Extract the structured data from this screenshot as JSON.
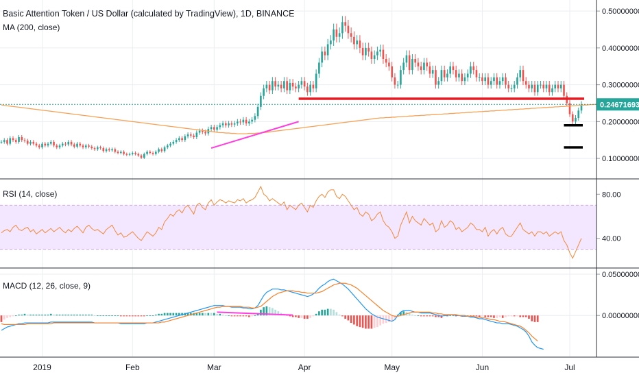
{
  "header": {
    "title": "Basic Attention Token / US Dollar (calculated by TradingView), 1D, BINANCE",
    "ma_label": "MA (200, close)",
    "rsi_label": "RSI (14, close)",
    "macd_label": "MACD (12, 26, close, 9)"
  },
  "colors": {
    "up": "#26a69a",
    "down": "#ef5350",
    "ma": "#f7a155",
    "rsi": "#f08a3a",
    "rsi_band": "#f3e6ff",
    "macd_line": "#2196f3",
    "signal_line": "#f7822b",
    "price_tag": "#26a69a",
    "resistance": "#e51c23",
    "trendline": "#ff3ee0",
    "support": "#000000"
  },
  "chart_data": [
    {
      "type": "candlestick",
      "pane": "price",
      "x_tick_labels": [
        "2019",
        "Feb",
        "Mar",
        "Apr",
        "May",
        "Jun",
        "Jul"
      ],
      "y_tick_labels": [
        "0.50000000",
        "0.40000000",
        "0.30000000",
        "0.20000000",
        "0.10000000"
      ],
      "ylim": [
        0.05,
        0.53
      ],
      "last_price_label": "0.24671693",
      "last_price": 0.2467,
      "close": [
        0.145,
        0.15,
        0.14,
        0.155,
        0.15,
        0.145,
        0.158,
        0.15,
        0.148,
        0.14,
        0.145,
        0.14,
        0.135,
        0.13,
        0.14,
        0.135,
        0.14,
        0.145,
        0.135,
        0.13,
        0.135,
        0.14,
        0.138,
        0.145,
        0.138,
        0.132,
        0.14,
        0.135,
        0.13,
        0.135,
        0.132,
        0.128,
        0.125,
        0.13,
        0.128,
        0.12,
        0.125,
        0.122,
        0.125,
        0.118,
        0.115,
        0.118,
        0.112,
        0.11,
        0.112,
        0.115,
        0.112,
        0.108,
        0.102,
        0.112,
        0.118,
        0.115,
        0.112,
        0.118,
        0.125,
        0.12,
        0.13,
        0.135,
        0.14,
        0.145,
        0.15,
        0.155,
        0.15,
        0.16,
        0.165,
        0.162,
        0.158,
        0.17,
        0.175,
        0.172,
        0.168,
        0.18,
        0.185,
        0.178,
        0.185,
        0.19,
        0.195,
        0.19,
        0.195,
        0.192,
        0.195,
        0.2,
        0.198,
        0.205,
        0.195,
        0.2,
        0.205,
        0.215,
        0.24,
        0.27,
        0.29,
        0.3,
        0.285,
        0.31,
        0.295,
        0.3,
        0.29,
        0.31,
        0.285,
        0.305,
        0.295,
        0.29,
        0.3,
        0.31,
        0.295,
        0.28,
        0.3,
        0.29,
        0.33,
        0.36,
        0.39,
        0.38,
        0.41,
        0.42,
        0.45,
        0.43,
        0.44,
        0.47,
        0.46,
        0.44,
        0.43,
        0.41,
        0.42,
        0.4,
        0.38,
        0.4,
        0.39,
        0.37,
        0.38,
        0.39,
        0.395,
        0.37,
        0.36,
        0.35,
        0.32,
        0.3,
        0.3,
        0.34,
        0.36,
        0.38,
        0.34,
        0.37,
        0.36,
        0.35,
        0.34,
        0.36,
        0.35,
        0.33,
        0.34,
        0.3,
        0.31,
        0.34,
        0.32,
        0.33,
        0.35,
        0.34,
        0.32,
        0.33,
        0.31,
        0.32,
        0.33,
        0.35,
        0.34,
        0.32,
        0.32,
        0.31,
        0.32,
        0.3,
        0.31,
        0.32,
        0.3,
        0.31,
        0.32,
        0.3,
        0.29,
        0.29,
        0.3,
        0.32,
        0.34,
        0.31,
        0.3,
        0.29,
        0.3,
        0.28,
        0.3,
        0.3,
        0.29,
        0.3,
        0.28,
        0.29,
        0.3,
        0.29,
        0.3,
        0.27,
        0.25,
        0.22,
        0.2,
        0.21,
        0.23,
        0.2467
      ],
      "ma200": [
        0.245,
        0.244,
        0.243,
        0.242,
        0.241,
        0.24,
        0.239,
        0.238,
        0.237,
        0.236,
        0.235,
        0.234,
        0.233,
        0.232,
        0.231,
        0.23,
        0.229,
        0.228,
        0.227,
        0.226,
        0.225,
        0.224,
        0.223,
        0.222,
        0.221,
        0.22,
        0.219,
        0.218,
        0.217,
        0.216,
        0.215,
        0.214,
        0.213,
        0.212,
        0.211,
        0.21,
        0.209,
        0.208,
        0.207,
        0.206,
        0.205,
        0.204,
        0.203,
        0.202,
        0.201,
        0.2,
        0.199,
        0.198,
        0.197,
        0.196,
        0.195,
        0.194,
        0.193,
        0.192,
        0.191,
        0.19,
        0.189,
        0.188,
        0.187,
        0.186,
        0.185,
        0.184,
        0.183,
        0.182,
        0.181,
        0.18,
        0.179,
        0.178,
        0.177,
        0.176,
        0.175,
        0.174,
        0.173,
        0.172,
        0.171,
        0.17,
        0.17,
        0.169,
        0.169,
        0.168,
        0.168,
        0.167,
        0.167,
        0.167,
        0.167,
        0.168,
        0.168,
        0.168,
        0.169,
        0.169,
        0.17,
        0.171,
        0.172,
        0.173,
        0.174,
        0.175,
        0.176,
        0.177,
        0.178,
        0.179,
        0.18,
        0.181,
        0.182,
        0.183,
        0.184,
        0.185,
        0.186,
        0.187,
        0.188,
        0.189,
        0.19,
        0.191,
        0.192,
        0.193,
        0.194,
        0.195,
        0.196,
        0.197,
        0.198,
        0.199,
        0.2,
        0.201,
        0.202,
        0.203,
        0.204,
        0.205,
        0.206,
        0.207,
        0.208,
        0.209,
        0.21,
        0.21,
        0.211,
        0.211,
        0.212,
        0.212,
        0.213,
        0.213,
        0.214,
        0.214,
        0.215,
        0.215,
        0.216,
        0.216,
        0.217,
        0.217,
        0.218,
        0.218,
        0.219,
        0.219,
        0.22,
        0.22,
        0.221,
        0.221,
        0.222,
        0.222,
        0.223,
        0.223,
        0.224,
        0.224,
        0.225,
        0.225,
        0.226,
        0.226,
        0.227,
        0.227,
        0.228,
        0.228,
        0.229,
        0.229,
        0.23,
        0.23,
        0.231,
        0.231,
        0.232,
        0.232,
        0.233,
        0.233,
        0.234,
        0.234,
        0.235,
        0.235,
        0.236,
        0.236,
        0.237,
        0.237,
        0.238,
        0.238,
        0.239,
        0.239,
        0.24,
        0.24,
        0.241,
        0.241,
        0.242,
        0.242,
        0.243,
        0.243,
        0.244,
        0.244,
        0.245,
        0.245,
        0.246,
        0.246,
        0.247
      ],
      "drawings": {
        "resistance": [
          0.262,
          0.262
        ],
        "trendline": [
          0.128,
          0.2
        ],
        "support_marks": [
          0.19,
          0.13
        ]
      }
    },
    {
      "type": "line",
      "pane": "rsi",
      "y_tick_labels": [
        "80.00",
        "40.00"
      ],
      "ylim": [
        15,
        92
      ],
      "bands": [
        30,
        70
      ],
      "values": [
        45,
        47,
        48,
        46,
        50,
        52,
        48,
        47,
        49,
        50,
        46,
        48,
        44,
        46,
        48,
        45,
        47,
        49,
        46,
        48,
        50,
        47,
        45,
        48,
        46,
        49,
        51,
        48,
        45,
        50,
        52,
        49,
        47,
        48,
        46,
        44,
        48,
        50,
        52,
        47,
        43,
        45,
        41,
        42,
        44,
        46,
        43,
        40,
        38,
        42,
        46,
        44,
        42,
        45,
        50,
        48,
        55,
        58,
        62,
        60,
        64,
        66,
        63,
        68,
        70,
        66,
        62,
        70,
        72,
        68,
        66,
        72,
        75,
        70,
        73,
        75,
        74,
        72,
        74,
        73,
        72,
        75,
        74,
        76,
        72,
        74,
        75,
        77,
        82,
        87,
        80,
        78,
        74,
        76,
        74,
        72,
        70,
        73,
        66,
        70,
        68,
        66,
        70,
        72,
        68,
        64,
        70,
        68,
        74,
        78,
        80,
        77,
        82,
        84,
        84,
        78,
        76,
        80,
        78,
        74,
        70,
        66,
        68,
        62,
        60,
        64,
        62,
        56,
        58,
        62,
        64,
        56,
        52,
        50,
        46,
        40,
        42,
        52,
        58,
        64,
        54,
        60,
        56,
        54,
        52,
        58,
        55,
        52,
        54,
        46,
        48,
        56,
        50,
        52,
        56,
        54,
        48,
        50,
        46,
        48,
        50,
        54,
        52,
        48,
        48,
        46,
        50,
        42,
        46,
        48,
        44,
        48,
        50,
        44,
        42,
        42,
        46,
        50,
        54,
        48,
        46,
        44,
        46,
        42,
        46,
        46,
        44,
        46,
        42,
        44,
        46,
        44,
        46,
        38,
        34,
        27,
        22,
        28,
        34,
        40
      ]
    },
    {
      "type": "line+bar",
      "pane": "macd",
      "y_tick_labels": [
        "0.05000000",
        "0.00000000"
      ],
      "ylim": [
        -0.048,
        0.055
      ],
      "macd": [
        -0.018,
        -0.016,
        -0.014,
        -0.013,
        -0.012,
        -0.011,
        -0.01,
        -0.01,
        -0.009,
        -0.009,
        -0.009,
        -0.009,
        -0.009,
        -0.009,
        -0.009,
        -0.009,
        -0.009,
        -0.008,
        -0.008,
        -0.008,
        -0.008,
        -0.008,
        -0.008,
        -0.008,
        -0.008,
        -0.008,
        -0.008,
        -0.008,
        -0.008,
        -0.008,
        -0.008,
        -0.008,
        -0.009,
        -0.009,
        -0.009,
        -0.009,
        -0.009,
        -0.009,
        -0.009,
        -0.009,
        -0.009,
        -0.01,
        -0.01,
        -0.01,
        -0.01,
        -0.01,
        -0.01,
        -0.01,
        -0.01,
        -0.01,
        -0.009,
        -0.009,
        -0.009,
        -0.008,
        -0.007,
        -0.006,
        -0.005,
        -0.004,
        -0.003,
        -0.002,
        -0.001,
        0.0,
        0.001,
        0.002,
        0.003,
        0.004,
        0.005,
        0.006,
        0.007,
        0.008,
        0.009,
        0.01,
        0.011,
        0.012,
        0.012,
        0.012,
        0.012,
        0.011,
        0.011,
        0.01,
        0.01,
        0.01,
        0.01,
        0.009,
        0.009,
        0.008,
        0.008,
        0.009,
        0.012,
        0.018,
        0.024,
        0.028,
        0.03,
        0.032,
        0.032,
        0.032,
        0.031,
        0.031,
        0.03,
        0.029,
        0.028,
        0.027,
        0.026,
        0.025,
        0.024,
        0.023,
        0.024,
        0.026,
        0.029,
        0.033,
        0.036,
        0.038,
        0.041,
        0.043,
        0.044,
        0.042,
        0.04,
        0.038,
        0.035,
        0.032,
        0.028,
        0.024,
        0.02,
        0.016,
        0.012,
        0.008,
        0.005,
        0.002,
        0.0,
        -0.002,
        -0.003,
        -0.004,
        -0.005,
        -0.006,
        -0.007,
        -0.005,
        0.0,
        0.004,
        0.006,
        0.006,
        0.006,
        0.005,
        0.004,
        0.004,
        0.003,
        0.003,
        0.003,
        0.003,
        0.002,
        0.001,
        0.0,
        -0.001,
        0.0,
        0.0,
        0.001,
        0.001,
        0.0,
        0.0,
        -0.001,
        -0.001,
        -0.001,
        -0.002,
        -0.002,
        -0.003,
        -0.004,
        -0.004,
        -0.005,
        -0.006,
        -0.007,
        -0.008,
        -0.009,
        -0.009,
        -0.01,
        -0.01,
        -0.01,
        -0.011,
        -0.012,
        -0.013,
        -0.015,
        -0.017,
        -0.02,
        -0.025,
        -0.032,
        -0.036,
        -0.039,
        -0.04,
        -0.041
      ],
      "signal": [
        -0.01,
        -0.011,
        -0.011,
        -0.011,
        -0.011,
        -0.011,
        -0.011,
        -0.011,
        -0.011,
        -0.01,
        -0.01,
        -0.01,
        -0.01,
        -0.01,
        -0.01,
        -0.01,
        -0.01,
        -0.01,
        -0.009,
        -0.009,
        -0.009,
        -0.009,
        -0.009,
        -0.009,
        -0.009,
        -0.009,
        -0.009,
        -0.009,
        -0.009,
        -0.009,
        -0.009,
        -0.009,
        -0.009,
        -0.009,
        -0.009,
        -0.009,
        -0.009,
        -0.009,
        -0.009,
        -0.009,
        -0.009,
        -0.009,
        -0.009,
        -0.009,
        -0.009,
        -0.009,
        -0.009,
        -0.009,
        -0.009,
        -0.009,
        -0.009,
        -0.009,
        -0.009,
        -0.009,
        -0.009,
        -0.008,
        -0.008,
        -0.007,
        -0.006,
        -0.005,
        -0.004,
        -0.003,
        -0.002,
        -0.001,
        0.0,
        0.001,
        0.002,
        0.003,
        0.004,
        0.005,
        0.006,
        0.007,
        0.008,
        0.009,
        0.01,
        0.01,
        0.011,
        0.011,
        0.011,
        0.011,
        0.011,
        0.011,
        0.011,
        0.01,
        0.01,
        0.01,
        0.009,
        0.009,
        0.01,
        0.011,
        0.014,
        0.017,
        0.02,
        0.023,
        0.025,
        0.027,
        0.028,
        0.029,
        0.03,
        0.03,
        0.03,
        0.029,
        0.029,
        0.028,
        0.028,
        0.027,
        0.027,
        0.027,
        0.027,
        0.028,
        0.029,
        0.031,
        0.033,
        0.035,
        0.037,
        0.038,
        0.039,
        0.039,
        0.039,
        0.038,
        0.037,
        0.035,
        0.033,
        0.03,
        0.027,
        0.024,
        0.021,
        0.018,
        0.015,
        0.012,
        0.009,
        0.006,
        0.004,
        0.002,
        0.0,
        -0.001,
        -0.001,
        0.0,
        0.001,
        0.002,
        0.003,
        0.004,
        0.004,
        0.004,
        0.004,
        0.004,
        0.004,
        0.004,
        0.003,
        0.003,
        0.002,
        0.002,
        0.001,
        0.001,
        0.001,
        0.001,
        0.001,
        0.0,
        0.0,
        0.0,
        -0.001,
        -0.001,
        -0.001,
        -0.002,
        -0.002,
        -0.003,
        -0.003,
        -0.004,
        -0.005,
        -0.005,
        -0.006,
        -0.007,
        -0.007,
        -0.008,
        -0.009,
        -0.01,
        -0.011,
        -0.012,
        -0.013,
        -0.015,
        -0.018,
        -0.021,
        -0.025,
        -0.028,
        -0.031
      ]
    }
  ]
}
